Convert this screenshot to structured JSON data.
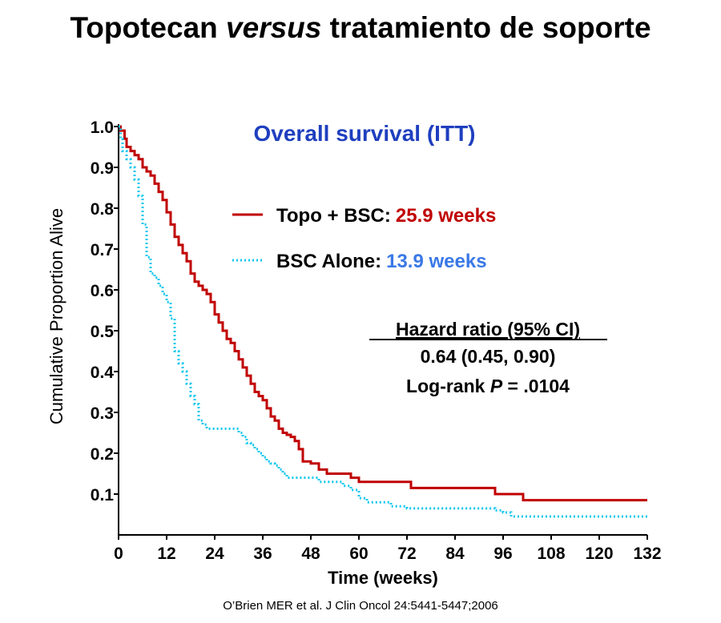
{
  "slide": {
    "title_part1": "Topotecan ",
    "title_italic": "versus",
    "title_part2": " tratamiento de soporte",
    "citation": "O’Brien MER et al. J Clin Oncol 24:5441-5447;2006"
  },
  "chart_data": {
    "type": "line",
    "subtitle": "Overall survival (ITT)",
    "xlabel": "Time (weeks)",
    "ylabel": "Cumulative Proportion Alive",
    "xlim": [
      0,
      132
    ],
    "ylim": [
      0,
      1.0
    ],
    "x_ticks": [
      0,
      12,
      24,
      36,
      48,
      60,
      72,
      84,
      96,
      108,
      120,
      132
    ],
    "y_ticks": [
      0.1,
      0.2,
      0.3,
      0.4,
      0.5,
      0.6,
      0.7,
      0.8,
      0.9,
      1.0
    ],
    "x_tick_labels": [
      "0",
      "12",
      "24",
      "36",
      "48",
      "60",
      "72",
      "84",
      "96",
      "108",
      "120",
      "132"
    ],
    "y_tick_labels": [
      "0.1",
      "0.2",
      "0.3",
      "0.4",
      "0.5",
      "0.6",
      "0.7",
      "0.8",
      "0.9",
      "1.0"
    ],
    "grid": false,
    "legend_position": "upper-center",
    "series": [
      {
        "name": "Topo + BSC:",
        "median_label": "25.9 weeks",
        "color": "#c00000",
        "style": "solid",
        "x": [
          0,
          0.5,
          1.5,
          2,
          3,
          4,
          5,
          6,
          7,
          8,
          9,
          10,
          11,
          12,
          13,
          14,
          15,
          16,
          17,
          18,
          19,
          20,
          21,
          22,
          23,
          24,
          25,
          26,
          27,
          28,
          29,
          30,
          31,
          32,
          33,
          34,
          35,
          36,
          37,
          38,
          39,
          40,
          41,
          42,
          43,
          44,
          45,
          46,
          47,
          48,
          50,
          52,
          54,
          56,
          58,
          60,
          62,
          64,
          66,
          68,
          70,
          72,
          73,
          76,
          80,
          84,
          88,
          92,
          93,
          94,
          96,
          98,
          100,
          101,
          102,
          108,
          120,
          132
        ],
        "y": [
          1.0,
          0.99,
          0.97,
          0.95,
          0.94,
          0.93,
          0.92,
          0.9,
          0.89,
          0.88,
          0.86,
          0.84,
          0.82,
          0.79,
          0.76,
          0.73,
          0.71,
          0.69,
          0.67,
          0.64,
          0.62,
          0.61,
          0.6,
          0.59,
          0.57,
          0.54,
          0.52,
          0.5,
          0.48,
          0.47,
          0.45,
          0.43,
          0.41,
          0.39,
          0.37,
          0.35,
          0.34,
          0.33,
          0.31,
          0.29,
          0.28,
          0.26,
          0.25,
          0.245,
          0.24,
          0.23,
          0.21,
          0.18,
          0.18,
          0.175,
          0.16,
          0.15,
          0.15,
          0.15,
          0.14,
          0.13,
          0.13,
          0.13,
          0.13,
          0.13,
          0.13,
          0.13,
          0.115,
          0.115,
          0.115,
          0.115,
          0.115,
          0.115,
          0.115,
          0.1,
          0.1,
          0.1,
          0.1,
          0.085,
          0.085,
          0.085,
          0.085,
          0.085
        ]
      },
      {
        "name": "BSC Alone:",
        "median_label": "13.9 weeks",
        "color": "#12c7ee",
        "style": "dotted",
        "x": [
          0,
          0.5,
          1,
          2,
          3,
          4,
          5,
          6,
          7,
          8,
          9,
          10,
          11,
          12,
          13,
          14,
          15,
          16,
          17,
          18,
          19,
          20,
          21,
          22,
          24,
          26,
          28,
          30,
          31,
          32,
          33,
          34,
          35,
          36,
          37,
          38,
          39,
          40,
          41,
          42,
          44,
          46,
          48,
          50,
          52,
          54,
          56,
          58,
          60,
          62,
          64,
          66,
          68,
          70,
          72,
          76,
          84,
          92,
          94,
          96,
          98,
          100,
          108,
          132
        ],
        "y": [
          1.0,
          0.97,
          0.94,
          0.92,
          0.9,
          0.87,
          0.83,
          0.76,
          0.68,
          0.64,
          0.63,
          0.61,
          0.59,
          0.57,
          0.53,
          0.45,
          0.42,
          0.4,
          0.37,
          0.34,
          0.32,
          0.28,
          0.27,
          0.26,
          0.26,
          0.26,
          0.26,
          0.25,
          0.24,
          0.225,
          0.22,
          0.21,
          0.2,
          0.19,
          0.18,
          0.175,
          0.17,
          0.16,
          0.15,
          0.14,
          0.14,
          0.14,
          0.14,
          0.13,
          0.13,
          0.13,
          0.12,
          0.11,
          0.09,
          0.08,
          0.08,
          0.08,
          0.07,
          0.07,
          0.065,
          0.065,
          0.065,
          0.065,
          0.06,
          0.055,
          0.045,
          0.045,
          0.045,
          0.045
        ]
      }
    ],
    "annotation": {
      "heading": "Hazard ratio (95% CI)",
      "value": "0.64 (0.45, 0.90)",
      "logrank_prefix": "Log-rank ",
      "logrank_p": "P",
      "logrank_value": " = .0104"
    }
  }
}
